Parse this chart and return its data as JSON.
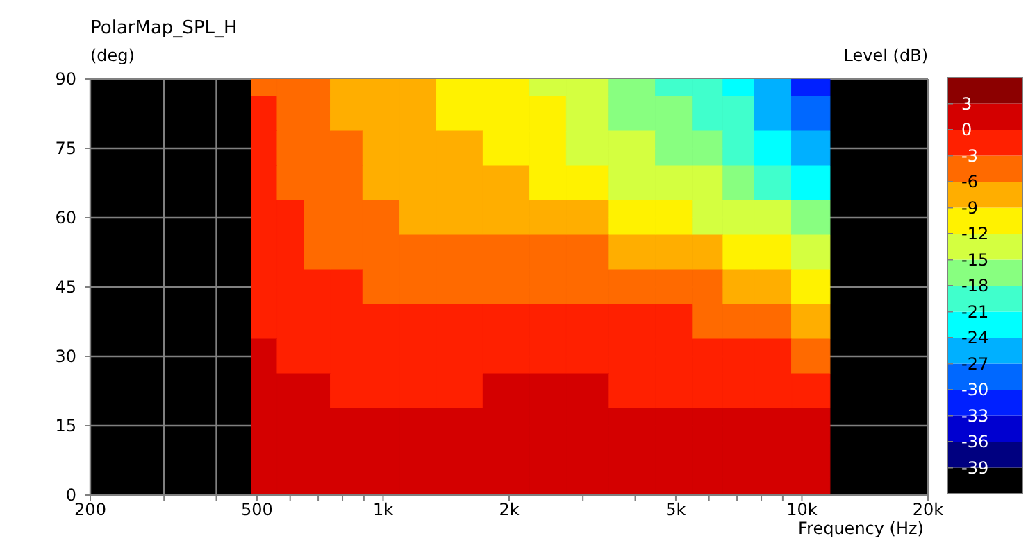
{
  "chart_data": {
    "type": "heatmap",
    "title": "PolarMap_SPL_H",
    "ylabel": "(deg)",
    "xlabel": "Frequency  (Hz)",
    "clabel": "Level  (dB)",
    "x": [
      520,
      600,
      700,
      800,
      1000,
      1200,
      1500,
      2000,
      2500,
      3000,
      4000,
      5000,
      6000,
      7000,
      8500,
      10500
    ],
    "y": [
      90,
      82.5,
      75,
      67.5,
      60,
      52.5,
      45,
      37.5,
      30,
      22.5,
      15,
      7.5,
      0
    ],
    "cells": [
      [
        -4.5,
        -4.5,
        -4.5,
        -7.5,
        -7.5,
        -7.5,
        -10.5,
        -10.5,
        -13.5,
        -13.5,
        -16.5,
        -19.5,
        -19.5,
        -22.5,
        -25.5,
        -31.5
      ],
      [
        -1.5,
        -4.5,
        -4.5,
        -7.5,
        -7.5,
        -7.5,
        -10.5,
        -10.5,
        -10.5,
        -13.5,
        -16.5,
        -16.5,
        -19.5,
        -19.5,
        -25.5,
        -28.5
      ],
      [
        -1.5,
        -4.5,
        -4.5,
        -4.5,
        -7.5,
        -7.5,
        -7.5,
        -10.5,
        -10.5,
        -13.5,
        -13.5,
        -16.5,
        -16.5,
        -19.5,
        -22.5,
        -25.5
      ],
      [
        -1.5,
        -4.5,
        -4.5,
        -4.5,
        -7.5,
        -7.5,
        -7.5,
        -7.5,
        -10.5,
        -10.5,
        -13.5,
        -13.5,
        -13.5,
        -16.5,
        -19.5,
        -22.5
      ],
      [
        -1.5,
        -1.5,
        -4.5,
        -4.5,
        -4.5,
        -7.5,
        -7.5,
        -7.5,
        -7.5,
        -7.5,
        -10.5,
        -10.5,
        -13.5,
        -13.5,
        -13.5,
        -16.5
      ],
      [
        -1.5,
        -1.5,
        -4.5,
        -4.5,
        -4.5,
        -4.5,
        -4.5,
        -4.5,
        -4.5,
        -4.5,
        -7.5,
        -7.5,
        -7.5,
        -10.5,
        -10.5,
        -13.5
      ],
      [
        -1.5,
        -1.5,
        -1.5,
        -1.5,
        -4.5,
        -4.5,
        -4.5,
        -4.5,
        -4.5,
        -4.5,
        -4.5,
        -4.5,
        -4.5,
        -7.5,
        -7.5,
        -10.5
      ],
      [
        -1.5,
        -1.5,
        -1.5,
        -1.5,
        -1.5,
        -1.5,
        -1.5,
        -1.5,
        -1.5,
        -1.5,
        -1.5,
        -1.5,
        -4.5,
        -4.5,
        -4.5,
        -7.5
      ],
      [
        1.5,
        -1.5,
        -1.5,
        -1.5,
        -1.5,
        -1.5,
        -1.5,
        -1.5,
        -1.5,
        -1.5,
        -1.5,
        -1.5,
        -1.5,
        -1.5,
        -1.5,
        -4.5
      ],
      [
        1.5,
        1.5,
        1.5,
        -1.5,
        -1.5,
        -1.5,
        -1.5,
        1.5,
        1.5,
        1.5,
        -1.5,
        -1.5,
        -1.5,
        -1.5,
        -1.5,
        -1.5
      ],
      [
        1.5,
        1.5,
        1.5,
        1.5,
        1.5,
        1.5,
        1.5,
        1.5,
        1.5,
        1.5,
        1.5,
        1.5,
        1.5,
        1.5,
        1.5,
        1.5
      ],
      [
        1.5,
        1.5,
        1.5,
        1.5,
        1.5,
        1.5,
        1.5,
        1.5,
        1.5,
        1.5,
        1.5,
        1.5,
        1.5,
        1.5,
        1.5,
        1.5
      ],
      [
        1.5,
        1.5,
        1.5,
        1.5,
        1.5,
        1.5,
        1.5,
        1.5,
        1.5,
        1.5,
        1.5,
        1.5,
        1.5,
        1.5,
        1.5,
        1.5
      ]
    ],
    "colors": [
      "#000000",
      "#000080",
      "#0000d0",
      "#0020ff",
      "#0068ff",
      "#00b0ff",
      "#00ffff",
      "#40ffcc",
      "#88ff80",
      "#d4ff40",
      "#fff200",
      "#ffae00",
      "#ff6a00",
      "#ff2000",
      "#d40000",
      "#8c0000"
    ],
    "clim": [
      -42,
      6
    ],
    "cticks": [
      3,
      0,
      -3,
      -6,
      -9,
      -12,
      -15,
      -18,
      -21,
      -24,
      -27,
      -30,
      -33,
      -36,
      -39
    ],
    "log": "x",
    "xlim": [
      200,
      20000
    ],
    "xticks": [
      {
        "value": 200,
        "label": "200"
      },
      {
        "value": 300,
        "label": null
      },
      {
        "value": 400,
        "label": null
      },
      {
        "value": 500,
        "label": "500"
      },
      {
        "value": 600,
        "label": null
      },
      {
        "value": 700,
        "label": null
      },
      {
        "value": 800,
        "label": null
      },
      {
        "value": 900,
        "label": null
      },
      {
        "value": 1000,
        "label": "1k"
      },
      {
        "value": 2000,
        "label": "2k"
      },
      {
        "value": 3000,
        "label": null
      },
      {
        "value": 4000,
        "label": null
      },
      {
        "value": 5000,
        "label": "5k"
      },
      {
        "value": 6000,
        "label": null
      },
      {
        "value": 7000,
        "label": null
      },
      {
        "value": 8000,
        "label": null
      },
      {
        "value": 9000,
        "label": null
      },
      {
        "value": 10000,
        "label": "10k"
      },
      {
        "value": 20000,
        "label": "20k"
      }
    ],
    "ylim": [
      0,
      90
    ],
    "yticks": [
      0,
      15,
      30,
      45,
      60,
      75,
      90
    ],
    "grid": true
  }
}
